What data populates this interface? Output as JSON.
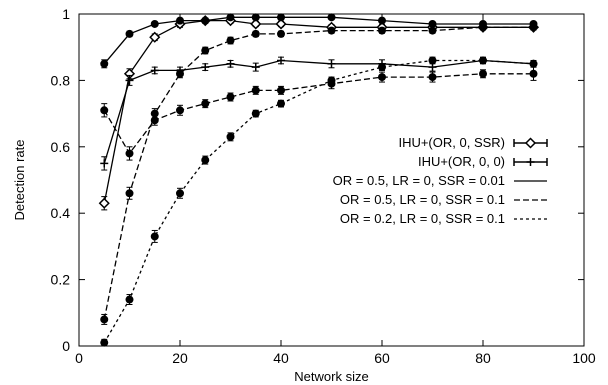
{
  "chart_data": {
    "type": "line",
    "xlabel": "Network size",
    "ylabel": "Detection rate",
    "xlim": [
      0,
      100
    ],
    "ylim": [
      0,
      1
    ],
    "xticks": [
      0,
      20,
      40,
      60,
      80,
      100
    ],
    "yticks": [
      0,
      0.2,
      0.4,
      0.6,
      0.8,
      1
    ],
    "xtick_labels": [
      "0",
      "20",
      "40",
      "60",
      "80",
      "100"
    ],
    "ytick_labels": [
      "0",
      "0.2",
      "0.4",
      "0.6",
      "0.8",
      "1"
    ],
    "grid": false,
    "legend_position": "right",
    "series": [
      {
        "name": "IHU+(OR, 0, SSR)",
        "line": "solid",
        "marker": "diamond",
        "errorbars": true,
        "x": [
          5,
          10,
          15,
          20,
          25,
          30,
          35,
          40,
          50,
          60,
          70,
          80,
          90
        ],
        "y": [
          0.43,
          0.82,
          0.93,
          0.97,
          0.98,
          0.98,
          0.97,
          0.97,
          0.96,
          0.96,
          0.96,
          0.96,
          0.96
        ],
        "err": [
          0.02,
          0.015,
          0.01,
          0.01,
          0.008,
          0.008,
          0.008,
          0.008,
          0.008,
          0.008,
          0.008,
          0.008,
          0.008
        ]
      },
      {
        "name": "IHU+(OR, 0, 0)",
        "line": "solid",
        "marker": "plus",
        "errorbars": true,
        "x": [
          5,
          10,
          15,
          20,
          25,
          30,
          35,
          40,
          50,
          60,
          70,
          80,
          90
        ],
        "y": [
          0.55,
          0.8,
          0.83,
          0.83,
          0.84,
          0.85,
          0.84,
          0.86,
          0.85,
          0.85,
          0.84,
          0.86,
          0.85
        ],
        "err": [
          0.02,
          0.015,
          0.01,
          0.01,
          0.01,
          0.01,
          0.012,
          0.01,
          0.012,
          0.012,
          0.012,
          0.01,
          0.01
        ]
      },
      {
        "name": "OR = 0.5, LR = 0, SSR = 0.01",
        "line": "solid",
        "marker": "circle",
        "errorbars": true,
        "x": [
          5,
          10,
          15,
          20,
          25,
          30,
          35,
          40,
          50,
          60,
          70,
          80,
          90
        ],
        "y": [
          0.85,
          0.94,
          0.97,
          0.98,
          0.98,
          0.99,
          0.99,
          0.99,
          0.99,
          0.98,
          0.97,
          0.97,
          0.97
        ],
        "err": [
          0.012,
          0.008,
          0.006,
          0.005,
          0.005,
          0.005,
          0.005,
          0.005,
          0.005,
          0.005,
          0.005,
          0.005,
          0.005
        ]
      },
      {
        "name": "OR = 0.5, LR = 0, SSR = 0.1",
        "line": "dashed",
        "marker": "circle",
        "errorbars": true,
        "x": [
          5,
          10,
          15,
          20,
          25,
          30,
          35,
          40,
          50,
          60,
          70,
          80,
          90
        ],
        "y": [
          0.08,
          0.46,
          0.7,
          0.82,
          0.89,
          0.92,
          0.94,
          0.94,
          0.95,
          0.95,
          0.95,
          0.96,
          0.96
        ],
        "err": [
          0.015,
          0.018,
          0.015,
          0.012,
          0.01,
          0.01,
          0.008,
          0.008,
          0.008,
          0.008,
          0.008,
          0.008,
          0.008
        ]
      },
      {
        "name": "",
        "line": "dashed",
        "marker": "circle",
        "errorbars": true,
        "x": [
          5,
          10,
          15,
          20,
          25,
          30,
          35,
          40,
          50,
          60,
          70,
          80,
          90
        ],
        "y": [
          0.71,
          0.58,
          0.68,
          0.71,
          0.73,
          0.75,
          0.77,
          0.77,
          0.79,
          0.81,
          0.81,
          0.82,
          0.82
        ],
        "err": [
          0.02,
          0.02,
          0.015,
          0.015,
          0.012,
          0.012,
          0.012,
          0.012,
          0.015,
          0.015,
          0.015,
          0.012,
          0.02
        ]
      },
      {
        "name": "OR = 0.2, LR = 0, SSR = 0.1",
        "line": "dotted",
        "marker": "circle",
        "errorbars": true,
        "x": [
          5,
          10,
          15,
          20,
          25,
          30,
          35,
          40,
          50,
          60,
          70,
          80,
          90
        ],
        "y": [
          0.01,
          0.14,
          0.33,
          0.46,
          0.56,
          0.63,
          0.7,
          0.73,
          0.8,
          0.84,
          0.86,
          0.86,
          0.85
        ],
        "err": [
          0.01,
          0.015,
          0.018,
          0.015,
          0.012,
          0.012,
          0.01,
          0.01,
          0.01,
          0.01,
          0.01,
          0.008,
          0.008
        ]
      }
    ],
    "legend": [
      {
        "label": "IHU+(OR, 0, SSR)",
        "style": "diamond-errorbar"
      },
      {
        "label": "IHU+(OR, 0, 0)",
        "style": "plus-errorbar"
      },
      {
        "label": "OR = 0.5, LR = 0, SSR = 0.01",
        "style": "solid"
      },
      {
        "label": "OR = 0.5, LR = 0, SSR = 0.1",
        "style": "dashed"
      },
      {
        "label": "OR = 0.2, LR = 0, SSR = 0.1",
        "style": "dotted"
      }
    ]
  }
}
